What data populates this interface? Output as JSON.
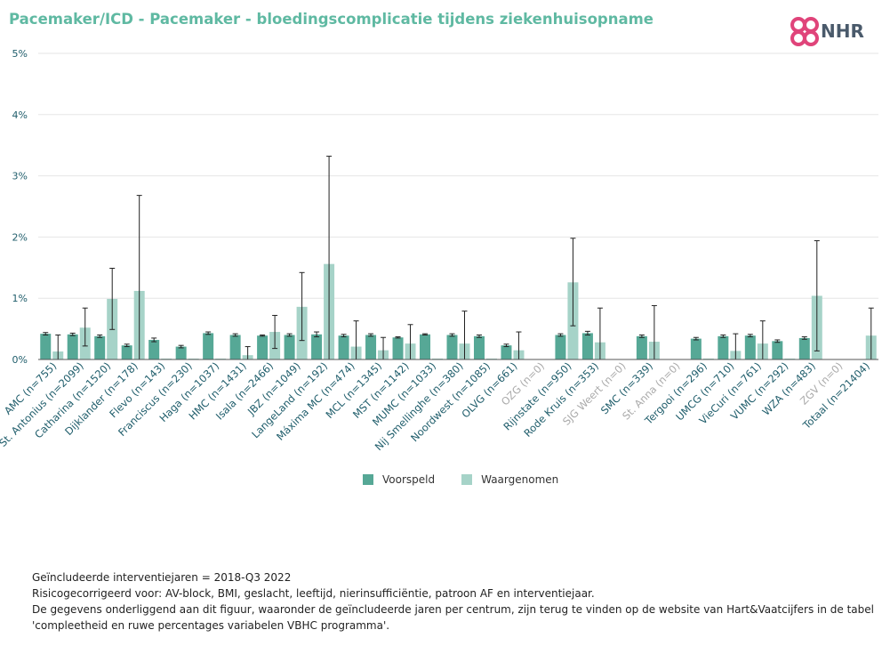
{
  "header": {
    "title": "Pacemaker/ICD - Pacemaker - bloedingscomplicatie tijdens ziekenhuisopname",
    "logo_text": "NHR"
  },
  "colors": {
    "title": "#5fb9a2",
    "voorspeld": "#56a896",
    "waargenomen": "#a6d3c8",
    "muted_label": "#aaaaaa",
    "label": "#1f5d6b",
    "logo_mark": "#e0447a"
  },
  "legend": {
    "voorspeld": "Voorspeld",
    "waargenomen": "Waargenomen"
  },
  "footer": {
    "line1": "Geïncludeerde interventiejaren = 2018-Q3 2022",
    "line2": "Risicogecorrigeerd voor: AV-block, BMI, geslacht, leeftijd, nierinsufficiëntie, patroon AF en interventiejaar.",
    "line3": "De gegevens onderliggend aan dit figuur, waaronder de geïncludeerde jaren per centrum, zijn terug te vinden op de website van Hart&Vaatcijfers in de tabel",
    "line4": "'compleetheid en ruwe percentages variabelen VBHC programma'."
  },
  "chart_data": {
    "type": "bar",
    "ylim": [
      0,
      5
    ],
    "yticks": [
      "0%",
      "1%",
      "2%",
      "3%",
      "4%",
      "5%"
    ],
    "grid": true,
    "legend_position": "bottom",
    "categories": [
      "AMC (n=755)",
      "St. Antonius (n=2099)",
      "Catharina (n=1520)",
      "Dijklander (n=178)",
      "Flevo (n=143)",
      "Franciscus (n=230)",
      "Haga (n=1037)",
      "HMC (n=1431)",
      "Isala (n=2466)",
      "JBZ (n=1049)",
      "LangeLand (n=192)",
      "Máxima MC (n=474)",
      "MCL (n=1345)",
      "MST (n=1142)",
      "MUMC (n=1033)",
      "Nij Smellinghe (n=380)",
      "Noordwest (n=1085)",
      "OLVG (n=661)",
      "OZG (n=0)",
      "Rijnstate (n=950)",
      "Rode Kruis (n=353)",
      "SJG Weert (n=0)",
      "SMC (n=339)",
      "St. Anna (n=0)",
      "Tergooi (n=296)",
      "UMCG (n=710)",
      "VieCuri (n=761)",
      "VUMC (n=292)",
      "WZA (n=483)",
      "ZGV (n=0)",
      "Totaal (n=21404)"
    ],
    "muted": [
      false,
      false,
      false,
      false,
      false,
      false,
      false,
      false,
      false,
      false,
      false,
      false,
      false,
      false,
      false,
      false,
      false,
      false,
      true,
      false,
      false,
      true,
      false,
      true,
      false,
      false,
      false,
      false,
      false,
      true,
      false
    ],
    "series": [
      {
        "name": "Voorspeld",
        "values": [
          0.42,
          0.41,
          0.38,
          0.23,
          0.32,
          0.21,
          0.43,
          0.4,
          0.39,
          0.4,
          0.41,
          0.39,
          0.4,
          0.36,
          0.41,
          0.4,
          0.38,
          0.23,
          null,
          0.4,
          0.43,
          null,
          0.38,
          null,
          0.34,
          0.38,
          0.39,
          0.3,
          0.35,
          null,
          null
        ],
        "err_low": [
          0.4,
          0.39,
          0.36,
          0.21,
          0.29,
          0.19,
          0.41,
          0.38,
          0.38,
          0.38,
          0.37,
          0.37,
          0.38,
          0.35,
          0.4,
          0.38,
          0.36,
          0.21,
          null,
          0.38,
          0.4,
          null,
          0.36,
          null,
          0.32,
          0.36,
          0.37,
          0.28,
          0.33,
          null,
          null
        ],
        "err_high": [
          0.44,
          0.43,
          0.4,
          0.25,
          0.35,
          0.23,
          0.45,
          0.42,
          0.4,
          0.42,
          0.45,
          0.41,
          0.42,
          0.37,
          0.42,
          0.42,
          0.4,
          0.25,
          null,
          0.42,
          0.46,
          null,
          0.4,
          null,
          0.36,
          0.4,
          0.41,
          0.32,
          0.37,
          null,
          null
        ]
      },
      {
        "name": "Waargenomen",
        "values": [
          0.13,
          0.52,
          0.99,
          1.12,
          0.0,
          0.0,
          0.0,
          0.07,
          0.45,
          0.86,
          1.56,
          0.21,
          0.15,
          0.26,
          0.0,
          0.26,
          0.0,
          0.15,
          null,
          1.26,
          0.28,
          null,
          0.29,
          null,
          0.0,
          0.14,
          0.26,
          0.0,
          1.04,
          null,
          0.39
        ],
        "err_low": [
          0.0,
          0.22,
          0.49,
          0.0,
          0.0,
          0.0,
          0.0,
          0.0,
          0.18,
          0.31,
          0.0,
          0.0,
          0.0,
          0.0,
          0.0,
          0.0,
          0.0,
          0.0,
          null,
          0.55,
          0.0,
          null,
          0.0,
          null,
          0.0,
          0.0,
          0.0,
          0.0,
          0.14,
          null,
          0.0
        ],
        "err_high": [
          0.4,
          0.84,
          1.49,
          2.68,
          null,
          null,
          null,
          0.21,
          0.72,
          1.42,
          3.32,
          0.63,
          0.36,
          0.57,
          null,
          0.79,
          null,
          0.45,
          null,
          1.98,
          0.84,
          null,
          0.88,
          null,
          null,
          0.42,
          0.63,
          null,
          1.94,
          null,
          0.84
        ]
      }
    ]
  }
}
